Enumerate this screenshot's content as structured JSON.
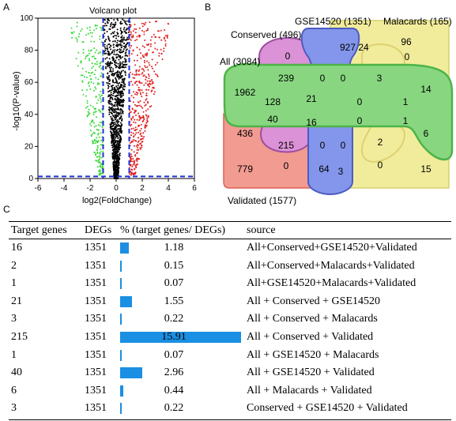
{
  "panels": {
    "a": "A",
    "b": "B",
    "c": "C"
  },
  "volcano": {
    "title": "Volcano plot",
    "xlabel": "log2(FoldChange)",
    "ylabel": "-log10(P-value)",
    "x_ticks": [
      "-6",
      "-4",
      "-2",
      "0",
      "2",
      "4",
      "6"
    ],
    "y_ticks": [
      "0",
      "20",
      "40",
      "60",
      "80",
      "100"
    ],
    "colors": {
      "down": "#39d939",
      "up": "#e02020",
      "ns": "#000000",
      "threshold": "#1f2fd6"
    }
  },
  "chart_data": {
    "type": "scatter",
    "title": "Volcano plot",
    "xlabel": "log2(FoldChange)",
    "ylabel": "-log10(P-value)",
    "xlim": [
      -6,
      6
    ],
    "ylim": [
      0,
      100
    ],
    "thresholds": {
      "x": [
        -1,
        1
      ],
      "y": 1.3
    },
    "series": [
      {
        "color": "#000000",
        "points_description_x_range": [
          -1,
          1
        ]
      },
      {
        "color": "#39d939",
        "points_description_x_range": [
          -5,
          -1
        ]
      },
      {
        "color": "#e02020",
        "points_description_x_range": [
          1,
          5
        ]
      }
    ]
  },
  "venn": {
    "labels": {
      "conserved": "Conserved (496)",
      "gse": "GSE14520 (1351)",
      "malacards": "Malacards (165)",
      "all": "All (3084)",
      "validated": "Validated (1577)"
    },
    "colors": {
      "conserved": "#d57fd0",
      "gse": "#6e84e8",
      "malacards": "#efe98a",
      "all": "#74d16b",
      "validated": "#ef8a7e"
    },
    "numbers": [
      "96",
      "0",
      "927",
      "24",
      "0",
      "1962",
      "239",
      "0",
      "0",
      "3",
      "14",
      "128",
      "21",
      "0",
      "1",
      "40",
      "16",
      "0",
      "1",
      "436",
      "215",
      "0",
      "0",
      "2",
      "6",
      "779",
      "0",
      "64",
      "3",
      "0",
      "15"
    ]
  },
  "table": {
    "headers": [
      "Target genes",
      "DEGs",
      "% (target genes/ DEGs)",
      "source"
    ],
    "bar_color": "#1a8fe3",
    "rows": [
      {
        "genes": "16",
        "degs": "1351",
        "pct": "1.18",
        "pct_value": 1.18,
        "source": "All+Conserved+GSE14520+Validated"
      },
      {
        "genes": "2",
        "degs": "1351",
        "pct": "0.15",
        "pct_value": 0.15,
        "source": "All+Conserved+Malacards+Validated"
      },
      {
        "genes": "1",
        "degs": "1351",
        "pct": "0.07",
        "pct_value": 0.07,
        "source": "All+GSE14520+Malacards+Validated"
      },
      {
        "genes": "21",
        "degs": "1351",
        "pct": "1.55",
        "pct_value": 1.55,
        "source": "All + Conserved + GSE14520"
      },
      {
        "genes": "3",
        "degs": "1351",
        "pct": "0.22",
        "pct_value": 0.22,
        "source": "All + Conserved + Malacards"
      },
      {
        "genes": "215",
        "degs": "1351",
        "pct": "15.91",
        "pct_value": 15.91,
        "source": "All + Conserved + Validated"
      },
      {
        "genes": "1",
        "degs": "1351",
        "pct": "0.07",
        "pct_value": 0.07,
        "source": "All + GSE14520 + Malacards"
      },
      {
        "genes": "40",
        "degs": "1351",
        "pct": "2.96",
        "pct_value": 2.96,
        "source": "All + GSE14520 + Validated"
      },
      {
        "genes": "6",
        "degs": "1351",
        "pct": "0.44",
        "pct_value": 0.44,
        "source": "All + Malacards + Validated"
      },
      {
        "genes": "3",
        "degs": "1351",
        "pct": "0.22",
        "pct_value": 0.22,
        "source": "Conserved + GSE14520 + Validated"
      }
    ]
  }
}
